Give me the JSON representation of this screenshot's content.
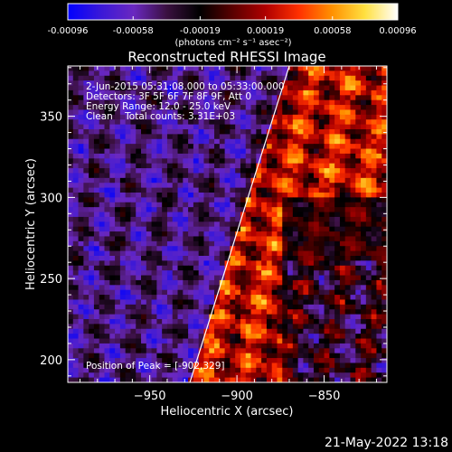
{
  "colorbar": {
    "tick_labels": [
      "-0.00096",
      "-0.00058",
      "-0.00019",
      "0.00019",
      "0.00058",
      "0.00096"
    ],
    "tick_values": [
      -0.00096,
      -0.00058,
      -0.00019,
      0.00019,
      0.00058,
      0.00096
    ],
    "range": [
      -0.00096,
      0.00096
    ],
    "unit_label": "(photons cm⁻² s⁻¹ asec⁻²)",
    "gradient_colors": [
      "#0000ff",
      "#3a18d8",
      "#6a28c0",
      "#3a1040",
      "#000000",
      "#5a0000",
      "#b00000",
      "#ff3000",
      "#ff9000",
      "#ffe040",
      "#ffffff"
    ]
  },
  "chart_data": {
    "type": "heatmap",
    "title": "Reconstructed RHESSI Image",
    "xlabel": "Heliocentric X (arcsec)",
    "ylabel": "Heliocentric Y (arcsec)",
    "xlim": [
      -997,
      -814
    ],
    "ylim": [
      186,
      381
    ],
    "x_ticks": [
      -950,
      -900,
      -850
    ],
    "x_tick_labels": [
      "−950",
      "−900",
      "−850"
    ],
    "y_ticks": [
      200,
      250,
      300,
      350
    ],
    "y_tick_labels": [
      "200",
      "250",
      "300",
      "350"
    ],
    "info_lines": [
      "2-Jun-2015 05:31:08.000 to 05:33:00.000",
      "Detectors: 3F 5F 6F 7F 8F 9F, Att 0",
      "Energy Range: 12.0 - 25.0 keV",
      "Clean    Total counts: 3.31E+03"
    ],
    "peak_text": "Position of Peak = [-902,329]",
    "peak": [
      -902,
      329
    ],
    "limb_line": [
      [
        -927,
        186
      ],
      [
        -870,
        381
      ]
    ],
    "grid": false
  },
  "footer": {
    "timestamp": "21-May-2022 13:18"
  }
}
